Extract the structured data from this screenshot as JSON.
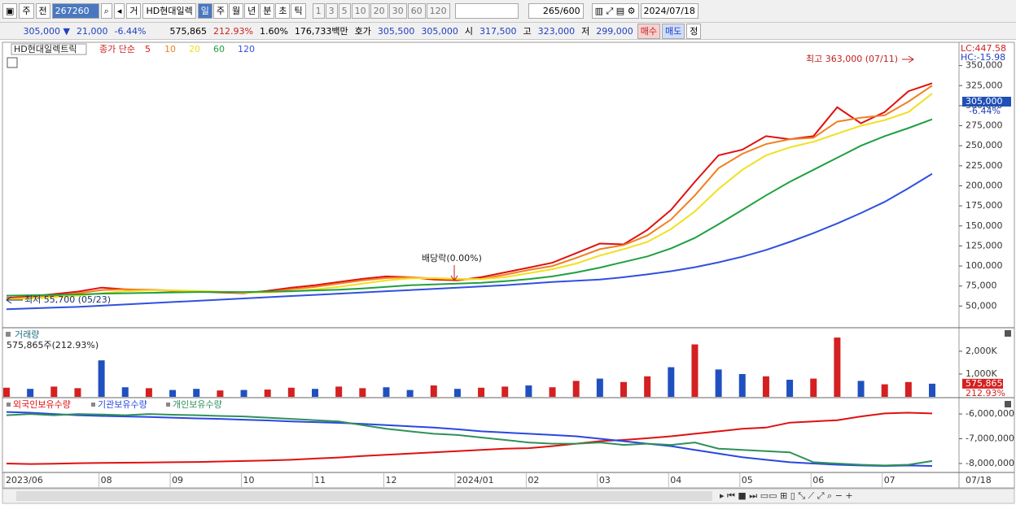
{
  "toolbar": {
    "market": "주",
    "scope": "전",
    "code": "267260",
    "tag": "거",
    "name": "HD현대일렉",
    "periods": [
      "일",
      "주",
      "월",
      "년",
      "분",
      "초",
      "틱"
    ],
    "intervals": [
      "1",
      "3",
      "5",
      "10",
      "20",
      "30",
      "60",
      "120"
    ],
    "count": "265",
    "max": "/600",
    "date": "2024/07/18"
  },
  "quote": {
    "price": "305,000 ▼",
    "change": "21,000",
    "rate": "-6.44%",
    "volume": "575,865",
    "volume_ratio": "212.93%",
    "turnover": "1.60%",
    "amount": "176,733백만",
    "ask_label": "호가",
    "ask": "305,500",
    "bid": "305,000",
    "open_label": "시",
    "open": "317,500",
    "high_label": "고",
    "high": "323,000",
    "low_label": "저",
    "low": "299,000",
    "buy": "매수",
    "sell": "매도",
    "eval": "정"
  },
  "chart_data": [
    {
      "type": "line",
      "legend_title": "HD현대일렉트릭",
      "legend_label": "종가 단순",
      "series": [
        {
          "name": "5",
          "color": "#e01010",
          "values": [
            60000,
            62000,
            65000,
            68000,
            73000,
            71000,
            70000,
            69000,
            68000,
            67000,
            66000,
            69000,
            73000,
            76000,
            80000,
            84000,
            87000,
            86000,
            83000,
            82000,
            86000,
            92000,
            98000,
            104000,
            116000,
            128000,
            127000,
            145000,
            170000,
            205000,
            238000,
            245000,
            262000,
            258000,
            262000,
            298000,
            278000,
            292000,
            318000,
            328000
          ]
        },
        {
          "name": "10",
          "color": "#f08020",
          "values": [
            59000,
            61000,
            63000,
            66000,
            70000,
            71000,
            70500,
            69500,
            68500,
            67500,
            66500,
            67500,
            71000,
            74000,
            78000,
            82000,
            85000,
            86000,
            84500,
            83000,
            84000,
            89000,
            95000,
            100000,
            110000,
            121000,
            126000,
            138000,
            158000,
            188000,
            222000,
            240000,
            252000,
            258000,
            260000,
            280000,
            285000,
            288000,
            305000,
            325000
          ]
        },
        {
          "name": "20",
          "color": "#f0e020",
          "values": [
            58000,
            59500,
            61000,
            63000,
            66000,
            68500,
            69500,
            69500,
            69000,
            68000,
            67000,
            67000,
            68500,
            71000,
            74000,
            78000,
            82000,
            84500,
            85000,
            84000,
            83500,
            86000,
            91000,
            96000,
            103000,
            113000,
            121000,
            130000,
            146000,
            168000,
            196000,
            220000,
            238000,
            248000,
            255000,
            265000,
            275000,
            282000,
            292000,
            315000
          ]
        },
        {
          "name": "60",
          "color": "#20a040",
          "values": [
            63000,
            63500,
            64000,
            64500,
            65500,
            66000,
            66500,
            67000,
            67500,
            67500,
            67500,
            68000,
            68500,
            69500,
            70500,
            72000,
            74000,
            76000,
            77000,
            78000,
            79000,
            81000,
            83500,
            87000,
            92000,
            98000,
            105000,
            112000,
            122000,
            135000,
            152000,
            170000,
            188000,
            205000,
            220000,
            235000,
            250000,
            262000,
            272000,
            283000
          ]
        },
        {
          "name": "120",
          "color": "#3050e0",
          "values": [
            46000,
            47000,
            48000,
            49000,
            50500,
            52000,
            53500,
            55000,
            56500,
            58000,
            59500,
            61000,
            62500,
            64000,
            65500,
            67000,
            68500,
            70000,
            71500,
            73000,
            74500,
            76000,
            78000,
            80000,
            81500,
            83000,
            86000,
            89500,
            93500,
            98500,
            104500,
            111500,
            120000,
            130000,
            141000,
            153000,
            166000,
            180000,
            197000,
            215000
          ]
        }
      ],
      "ylim": [
        24000,
        376000
      ],
      "yticks": [
        {
          "value": 50000,
          "label": "50,000"
        },
        {
          "value": 75000,
          "label": "75,000"
        },
        {
          "value": 100000,
          "label": "100,000"
        },
        {
          "value": 125000,
          "label": "125,000"
        },
        {
          "value": 150000,
          "label": "150,000"
        },
        {
          "value": 175000,
          "label": "175,000"
        },
        {
          "value": 200000,
          "label": "200,000"
        },
        {
          "value": 225000,
          "label": "225,000"
        },
        {
          "value": 250000,
          "label": "250,000"
        },
        {
          "value": 275000,
          "label": "275,000"
        },
        {
          "value": 300000,
          "label": "300,000"
        },
        {
          "value": 325000,
          "label": "325,000"
        },
        {
          "value": 350000,
          "label": "350,000"
        }
      ],
      "high_label": "최고 363,000 (07/11)",
      "low_label": "최저 55,700 (05/23)",
      "ex_dividend": "배당락(0.00%)",
      "lc": "LC:447.58",
      "hc": "HC:-15.98",
      "last_price": {
        "value": 305000,
        "label": "305,000"
      },
      "last_change": "-6.44%"
    },
    {
      "type": "bar",
      "title": "거래량",
      "subtitle": "575,865주(212.93%)",
      "values": [
        400000,
        350000,
        450000,
        380000,
        1600000,
        420000,
        380000,
        300000,
        350000,
        280000,
        300000,
        320000,
        400000,
        350000,
        450000,
        380000,
        420000,
        300000,
        500000,
        350000,
        400000,
        450000,
        500000,
        420000,
        700000,
        800000,
        650000,
        900000,
        1300000,
        2300000,
        1200000,
        1000000,
        900000,
        750000,
        800000,
        2600000,
        700000,
        550000,
        650000,
        575865
      ],
      "colors": [
        "#d42020",
        "#2050c0",
        "#d42020",
        "#d42020",
        "#2050c0",
        "#2050c0",
        "#d42020",
        "#2050c0",
        "#2050c0",
        "#d42020",
        "#2050c0",
        "#d42020",
        "#d42020",
        "#2050c0",
        "#d42020",
        "#d42020",
        "#2050c0",
        "#2050c0",
        "#d42020",
        "#2050c0",
        "#d42020",
        "#d42020",
        "#2050c0",
        "#d42020",
        "#d42020",
        "#2050c0",
        "#d42020",
        "#d42020",
        "#2050c0",
        "#d42020",
        "#2050c0",
        "#2050c0",
        "#d42020",
        "#2050c0",
        "#d42020",
        "#d42020",
        "#2050c0",
        "#d42020",
        "#d42020",
        "#2050c0"
      ],
      "ylim": [
        0,
        2960000
      ],
      "yticks": [
        {
          "value": 1000000,
          "label": "1,000K"
        },
        {
          "value": 2000000,
          "label": "2,000K"
        }
      ],
      "last_label": {
        "value": 575865,
        "label": "575,865"
      },
      "last_ratio": "212.93%"
    },
    {
      "type": "line",
      "categories": [
        "2023/06",
        null,
        null,
        null,
        "08",
        null,
        null,
        "09",
        null,
        null,
        "10",
        null,
        null,
        "11",
        null,
        null,
        "12",
        null,
        null,
        "2024/01",
        null,
        null,
        "02",
        null,
        null,
        "03",
        null,
        null,
        "04",
        null,
        null,
        "05",
        null,
        null,
        "06",
        null,
        null,
        "07",
        null,
        null
      ],
      "x_end_label": "07/18",
      "series": [
        {
          "name": "외국인보유수량",
          "color": "#e01010",
          "values": [
            -8000000,
            -8020000,
            -8010000,
            -7990000,
            -7980000,
            -7970000,
            -7960000,
            -7950000,
            -7940000,
            -7920000,
            -7900000,
            -7880000,
            -7850000,
            -7800000,
            -7760000,
            -7700000,
            -7650000,
            -7600000,
            -7550000,
            -7500000,
            -7450000,
            -7400000,
            -7380000,
            -7300000,
            -7200000,
            -7100000,
            -7050000,
            -6980000,
            -6900000,
            -6800000,
            -6700000,
            -6600000,
            -6550000,
            -6350000,
            -6300000,
            -6250000,
            -6100000,
            -5980000,
            -5950000,
            -5980000
          ]
        },
        {
          "name": "기관보유수량",
          "color": "#2848e0",
          "values": [
            -5920000,
            -5950000,
            -6000000,
            -6050000,
            -6080000,
            -6100000,
            -6120000,
            -6150000,
            -6180000,
            -6200000,
            -6230000,
            -6260000,
            -6300000,
            -6330000,
            -6360000,
            -6400000,
            -6450000,
            -6500000,
            -6550000,
            -6620000,
            -6700000,
            -6750000,
            -6800000,
            -6850000,
            -6900000,
            -7000000,
            -7100000,
            -7200000,
            -7300000,
            -7450000,
            -7600000,
            -7750000,
            -7850000,
            -7950000,
            -8000000,
            -8050000,
            -8080000,
            -8100000,
            -8080000,
            -8100000
          ]
        },
        {
          "name": "개인보유수량",
          "color": "#30905a",
          "values": [
            -6050000,
            -6000000,
            -6050000,
            -6000000,
            -6020000,
            -6050000,
            -6000000,
            -6030000,
            -6050000,
            -6080000,
            -6100000,
            -6150000,
            -6200000,
            -6250000,
            -6300000,
            -6450000,
            -6600000,
            -6700000,
            -6800000,
            -6850000,
            -6950000,
            -7050000,
            -7150000,
            -7200000,
            -7200000,
            -7150000,
            -7250000,
            -7200000,
            -7250000,
            -7150000,
            -7400000,
            -7450000,
            -7500000,
            -7550000,
            -7950000,
            -8000000,
            -8050000,
            -8080000,
            -8050000,
            -7900000
          ]
        }
      ],
      "ylim": [
        -8330000,
        -5440000
      ],
      "yticks": [
        {
          "value": -6000000,
          "label": "-6,000,000"
        },
        {
          "value": -7000000,
          "label": "-7,000,000"
        },
        {
          "value": -8000000,
          "label": "-8,000,000"
        }
      ]
    }
  ]
}
